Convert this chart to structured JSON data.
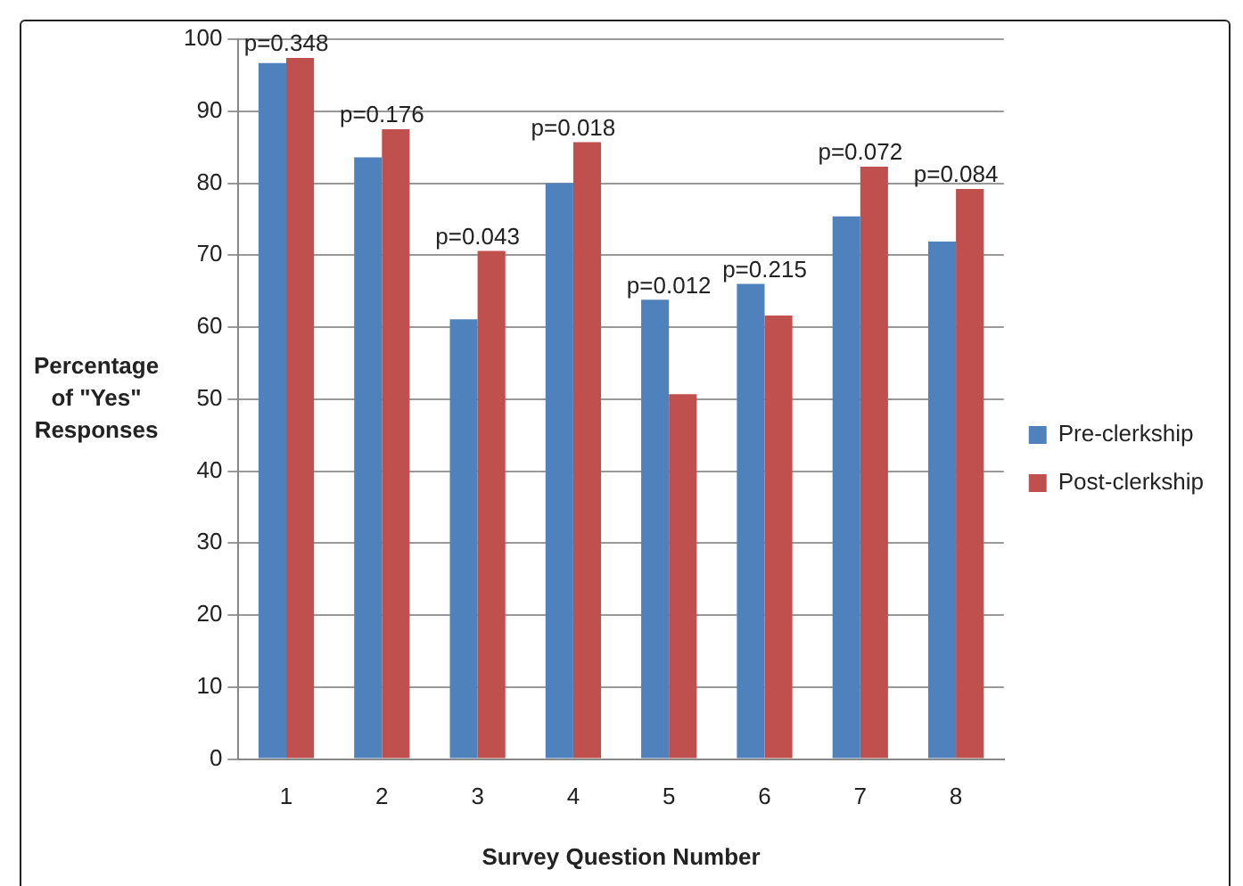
{
  "chart_data": {
    "type": "bar",
    "xlabel": "Survey Question Number",
    "ylabel": "Percentage of \"Yes\" Responses",
    "categories": [
      "1",
      "2",
      "3",
      "4",
      "5",
      "6",
      "7",
      "8"
    ],
    "series": [
      {
        "name": "Pre-clerkship",
        "color": "#4f81bd",
        "values": [
          96.7,
          83.6,
          61.1,
          80.0,
          63.8,
          66.0,
          75.4,
          71.9
        ]
      },
      {
        "name": "Post-clerkship",
        "color": "#c0504d",
        "values": [
          97.4,
          87.5,
          70.6,
          85.7,
          50.7,
          61.6,
          82.3,
          79.2
        ]
      }
    ],
    "ylim": [
      0,
      100
    ],
    "yticks": [
      0,
      10,
      20,
      30,
      40,
      50,
      60,
      70,
      80,
      90,
      100
    ],
    "grid": "y",
    "legend": "right",
    "annotations": [
      {
        "text": "p=0.348",
        "x": "1",
        "y": 97.4
      },
      {
        "text": "p=0.176",
        "x": "2",
        "y": 87.5
      },
      {
        "text": "p=0.043",
        "x": "3",
        "y": 70.6
      },
      {
        "text": "p=0.018",
        "x": "4",
        "y": 85.7
      },
      {
        "text": "p=0.012",
        "x": "5",
        "y": 63.8
      },
      {
        "text": "p=0.215",
        "x": "6",
        "y": 66.0
      },
      {
        "text": "p=0.072",
        "x": "7",
        "y": 82.3
      },
      {
        "text": "p=0.084",
        "x": "8",
        "y": 79.2
      }
    ]
  }
}
